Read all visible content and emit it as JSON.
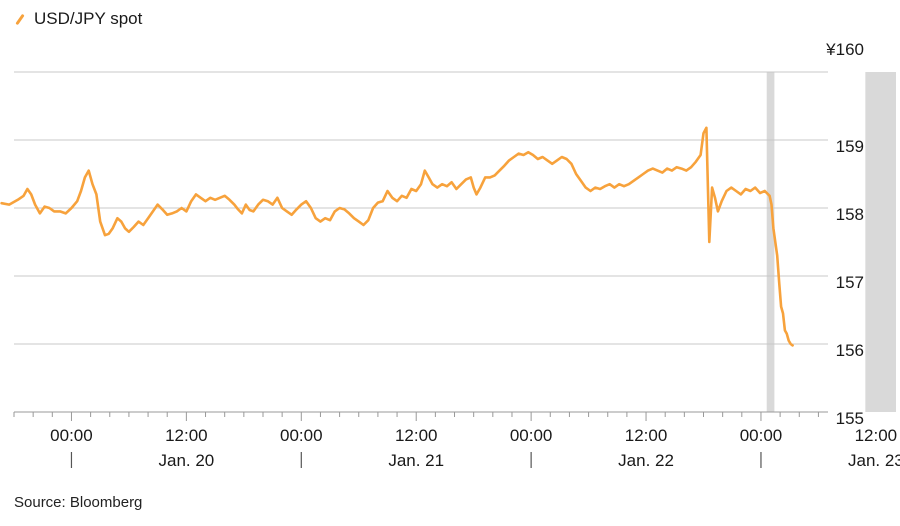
{
  "legend": {
    "series_name": "USD/JPY spot"
  },
  "source": "Source: Bloomberg",
  "colors": {
    "line": "#f7a23c",
    "grid": "#c8c8c8",
    "shade": "#d9d9d9",
    "text": "#1a1a1a"
  },
  "chart_data": {
    "type": "line",
    "x_unit": "hours since 00:00 Jan. 20",
    "xlim": [
      -6,
      79
    ],
    "ylim": [
      155,
      160
    ],
    "y_ticks": [
      155,
      156,
      157,
      158,
      159,
      160
    ],
    "y_tick_labels": [
      "155",
      "156",
      "157",
      "158",
      "159",
      "¥160"
    ],
    "x_ticks": [
      0,
      12,
      24,
      36,
      48,
      60,
      72,
      84
    ],
    "x_tick_labels": [
      "00:00",
      "12:00",
      "00:00",
      "12:00",
      "00:00",
      "12:00",
      "00:00",
      "12:00"
    ],
    "date_labels": [
      {
        "x": 12,
        "label": "Jan. 20"
      },
      {
        "x": 36,
        "label": "Jan. 21"
      },
      {
        "x": 60,
        "label": "Jan. 22"
      },
      {
        "x": 84,
        "label": "Jan. 23"
      }
    ],
    "day_separators": [
      0,
      24,
      48,
      72
    ],
    "shaded_ranges": [
      [
        72.6,
        73.4
      ],
      [
        82.9,
        86.1
      ]
    ],
    "grid": true,
    "series": [
      {
        "name": "USD/JPY spot",
        "points": [
          [
            -7.3,
            158.07
          ],
          [
            -6.5,
            158.05
          ],
          [
            -5.6,
            158.12
          ],
          [
            -5.0,
            158.18
          ],
          [
            -4.6,
            158.28
          ],
          [
            -4.2,
            158.2
          ],
          [
            -3.8,
            158.05
          ],
          [
            -3.3,
            157.92
          ],
          [
            -2.8,
            158.02
          ],
          [
            -2.3,
            158.0
          ],
          [
            -1.8,
            157.95
          ],
          [
            -1.2,
            157.95
          ],
          [
            -0.6,
            157.92
          ],
          [
            0.0,
            158.0
          ],
          [
            0.6,
            158.1
          ],
          [
            1.0,
            158.25
          ],
          [
            1.4,
            158.45
          ],
          [
            1.8,
            158.55
          ],
          [
            2.2,
            158.35
          ],
          [
            2.6,
            158.2
          ],
          [
            3.0,
            157.8
          ],
          [
            3.5,
            157.6
          ],
          [
            3.9,
            157.62
          ],
          [
            4.3,
            157.7
          ],
          [
            4.8,
            157.85
          ],
          [
            5.2,
            157.8
          ],
          [
            5.6,
            157.7
          ],
          [
            6.0,
            157.65
          ],
          [
            6.5,
            157.72
          ],
          [
            7.0,
            157.8
          ],
          [
            7.5,
            157.75
          ],
          [
            8.0,
            157.85
          ],
          [
            8.5,
            157.95
          ],
          [
            9.0,
            158.05
          ],
          [
            9.5,
            157.98
          ],
          [
            10.0,
            157.9
          ],
          [
            10.5,
            157.92
          ],
          [
            11.0,
            157.95
          ],
          [
            11.5,
            158.0
          ],
          [
            12.0,
            157.95
          ],
          [
            12.5,
            158.1
          ],
          [
            13.0,
            158.2
          ],
          [
            13.5,
            158.15
          ],
          [
            14.0,
            158.1
          ],
          [
            14.5,
            158.15
          ],
          [
            15.0,
            158.12
          ],
          [
            15.5,
            158.15
          ],
          [
            16.0,
            158.18
          ],
          [
            16.5,
            158.12
          ],
          [
            17.0,
            158.05
          ],
          [
            17.4,
            157.98
          ],
          [
            17.8,
            157.92
          ],
          [
            18.2,
            158.05
          ],
          [
            18.6,
            157.97
          ],
          [
            19.0,
            157.95
          ],
          [
            19.5,
            158.05
          ],
          [
            20.0,
            158.12
          ],
          [
            20.5,
            158.1
          ],
          [
            21.0,
            158.05
          ],
          [
            21.5,
            158.15
          ],
          [
            22.0,
            158.0
          ],
          [
            22.5,
            157.95
          ],
          [
            23.0,
            157.9
          ],
          [
            23.5,
            157.98
          ],
          [
            24.0,
            158.05
          ],
          [
            24.5,
            158.1
          ],
          [
            25.0,
            158.0
          ],
          [
            25.5,
            157.85
          ],
          [
            26.0,
            157.8
          ],
          [
            26.5,
            157.85
          ],
          [
            27.0,
            157.82
          ],
          [
            27.5,
            157.95
          ],
          [
            28.0,
            158.0
          ],
          [
            28.5,
            157.98
          ],
          [
            29.0,
            157.92
          ],
          [
            29.5,
            157.85
          ],
          [
            30.0,
            157.8
          ],
          [
            30.5,
            157.75
          ],
          [
            31.0,
            157.82
          ],
          [
            31.5,
            158.0
          ],
          [
            32.0,
            158.08
          ],
          [
            32.5,
            158.1
          ],
          [
            33.0,
            158.25
          ],
          [
            33.5,
            158.15
          ],
          [
            34.0,
            158.1
          ],
          [
            34.5,
            158.18
          ],
          [
            35.0,
            158.15
          ],
          [
            35.5,
            158.28
          ],
          [
            36.0,
            158.25
          ],
          [
            36.5,
            158.35
          ],
          [
            36.9,
            158.55
          ],
          [
            37.3,
            158.45
          ],
          [
            37.7,
            158.35
          ],
          [
            38.2,
            158.3
          ],
          [
            38.7,
            158.35
          ],
          [
            39.2,
            158.32
          ],
          [
            39.7,
            158.38
          ],
          [
            40.2,
            158.28
          ],
          [
            40.7,
            158.35
          ],
          [
            41.2,
            158.42
          ],
          [
            41.7,
            158.45
          ],
          [
            42.0,
            158.3
          ],
          [
            42.3,
            158.2
          ],
          [
            42.7,
            158.3
          ],
          [
            43.2,
            158.45
          ],
          [
            43.7,
            158.45
          ],
          [
            44.2,
            158.48
          ],
          [
            44.7,
            158.55
          ],
          [
            45.2,
            158.62
          ],
          [
            45.7,
            158.7
          ],
          [
            46.2,
            158.75
          ],
          [
            46.7,
            158.8
          ],
          [
            47.2,
            158.78
          ],
          [
            47.7,
            158.82
          ],
          [
            48.2,
            158.78
          ],
          [
            48.7,
            158.72
          ],
          [
            49.2,
            158.75
          ],
          [
            49.7,
            158.7
          ],
          [
            50.2,
            158.65
          ],
          [
            50.7,
            158.7
          ],
          [
            51.2,
            158.75
          ],
          [
            51.7,
            158.72
          ],
          [
            52.2,
            158.65
          ],
          [
            52.7,
            158.5
          ],
          [
            53.2,
            158.4
          ],
          [
            53.7,
            158.3
          ],
          [
            54.2,
            158.25
          ],
          [
            54.7,
            158.3
          ],
          [
            55.2,
            158.28
          ],
          [
            55.7,
            158.32
          ],
          [
            56.2,
            158.35
          ],
          [
            56.7,
            158.3
          ],
          [
            57.2,
            158.35
          ],
          [
            57.7,
            158.32
          ],
          [
            58.2,
            158.35
          ],
          [
            58.7,
            158.4
          ],
          [
            59.2,
            158.45
          ],
          [
            59.7,
            158.5
          ],
          [
            60.2,
            158.55
          ],
          [
            60.7,
            158.58
          ],
          [
            61.2,
            158.55
          ],
          [
            61.7,
            158.52
          ],
          [
            62.2,
            158.58
          ],
          [
            62.7,
            158.55
          ],
          [
            63.2,
            158.6
          ],
          [
            63.7,
            158.58
          ],
          [
            64.2,
            158.55
          ],
          [
            64.7,
            158.6
          ],
          [
            65.2,
            158.68
          ],
          [
            65.7,
            158.78
          ],
          [
            66.0,
            159.1
          ],
          [
            66.3,
            159.18
          ],
          [
            66.6,
            157.5
          ],
          [
            66.9,
            158.3
          ],
          [
            67.2,
            158.15
          ],
          [
            67.5,
            157.95
          ],
          [
            67.9,
            158.1
          ],
          [
            68.4,
            158.25
          ],
          [
            68.9,
            158.3
          ],
          [
            69.4,
            158.25
          ],
          [
            69.9,
            158.2
          ],
          [
            70.4,
            158.28
          ],
          [
            70.9,
            158.25
          ],
          [
            71.4,
            158.3
          ],
          [
            71.9,
            158.22
          ],
          [
            72.4,
            158.25
          ],
          [
            72.9,
            158.18
          ],
          [
            73.1,
            158.05
          ],
          [
            73.3,
            157.7
          ],
          [
            73.5,
            157.5
          ],
          [
            73.7,
            157.3
          ],
          [
            73.9,
            156.9
          ],
          [
            74.1,
            156.55
          ],
          [
            74.3,
            156.45
          ],
          [
            74.5,
            156.2
          ],
          [
            74.7,
            156.15
          ],
          [
            74.9,
            156.05
          ],
          [
            75.1,
            156.0
          ],
          [
            75.3,
            155.98
          ]
        ]
      }
    ]
  }
}
